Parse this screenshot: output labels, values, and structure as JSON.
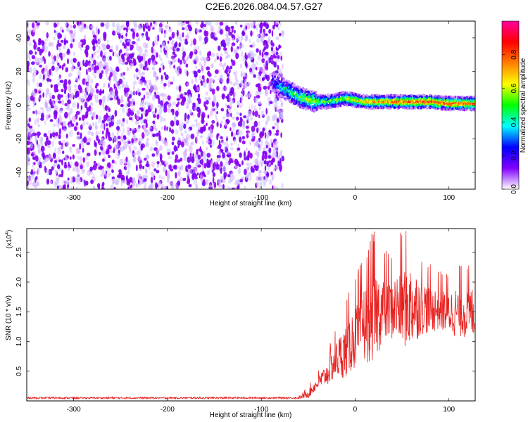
{
  "title": "C2E6.2026.084.04.57.G27",
  "chart_data": [
    {
      "type": "heatmap",
      "title": "C2E6.2026.084.04.57.G27",
      "xlabel": "Height of straight line (km)",
      "ylabel": "Frequency (Hz)",
      "xlim": [
        -350,
        128
      ],
      "ylim": [
        -50,
        50
      ],
      "x_ticks": [
        -300,
        -200,
        -100,
        0,
        100
      ],
      "x_tick_labels": [
        "-300",
        "-200",
        "-100",
        "0",
        "100"
      ],
      "y_ticks": [
        -40,
        -20,
        0,
        20,
        40
      ],
      "y_tick_labels": [
        "-40",
        "-20",
        "0",
        "20",
        "40"
      ],
      "noise_region_x": [
        -350,
        -77
      ],
      "signal_ridge": {
        "x": [
          -88,
          -80,
          -70,
          -60,
          -50,
          -40,
          -30,
          -20,
          -10,
          0,
          10,
          20,
          40,
          60,
          80,
          100,
          128
        ],
        "freq": [
          14,
          11,
          8,
          5,
          3,
          2,
          2,
          3,
          4,
          3,
          2,
          2,
          2,
          2,
          2,
          1,
          1
        ],
        "amplitude": [
          0.25,
          0.35,
          0.45,
          0.55,
          0.6,
          0.55,
          0.5,
          0.55,
          0.6,
          0.65,
          0.7,
          0.75,
          0.8,
          0.85,
          0.85,
          0.85,
          0.8
        ]
      },
      "colorbar": {
        "label": "Normalized spectral amplitude",
        "range": [
          0.0,
          1.0
        ],
        "ticks": [
          0.0,
          0.2,
          0.4,
          0.6,
          0.8
        ],
        "tick_labels": [
          "0.0",
          "0.2",
          "0.4",
          "0.6",
          "0.8"
        ],
        "colors": [
          "#ffffff",
          "#8000ff",
          "#0000ff",
          "#00ffff",
          "#00ff00",
          "#ffff00",
          "#ff8000",
          "#ff0000",
          "#ff00a0"
        ]
      }
    },
    {
      "type": "line",
      "xlabel": "Height of straight line (km)",
      "ylabel": "SNR (10 * v/v)",
      "y_multiplier": "(x10",
      "y_multiplier_exp": "4",
      "y_multiplier_close": ")",
      "xlim": [
        -350,
        128
      ],
      "ylim": [
        0,
        2.9
      ],
      "x_ticks": [
        -300,
        -200,
        -100,
        0,
        100
      ],
      "x_tick_labels": [
        "-300",
        "-200",
        "-100",
        "0",
        "100"
      ],
      "y_ticks": [
        0.5,
        1.0,
        1.5,
        2.0,
        2.5
      ],
      "y_tick_labels": [
        "0.5",
        "1.0",
        "1.5",
        "2.0",
        "2.5"
      ],
      "series": [
        {
          "name": "SNR",
          "color": "#e8201e",
          "x": [
            -350,
            -300,
            -200,
            -100,
            -60,
            -50,
            -40,
            -30,
            -20,
            -10,
            0,
            10,
            20,
            30,
            40,
            50,
            60,
            70,
            80,
            90,
            100,
            110,
            120,
            128
          ],
          "mean": [
            0.05,
            0.05,
            0.05,
            0.05,
            0.05,
            0.12,
            0.3,
            0.45,
            0.7,
            0.85,
            1.1,
            1.3,
            1.45,
            1.55,
            1.55,
            1.6,
            1.6,
            1.6,
            1.55,
            1.55,
            1.5,
            1.5,
            1.5,
            1.5
          ],
          "peak": [
            0.07,
            0.07,
            0.07,
            0.07,
            0.08,
            0.25,
            0.5,
            0.8,
            1.3,
            1.7,
            2.1,
            2.5,
            2.9,
            2.6,
            2.5,
            2.9,
            2.9,
            2.5,
            2.3,
            2.2,
            2.2,
            2.3,
            2.3,
            2.3
          ]
        }
      ]
    }
  ]
}
